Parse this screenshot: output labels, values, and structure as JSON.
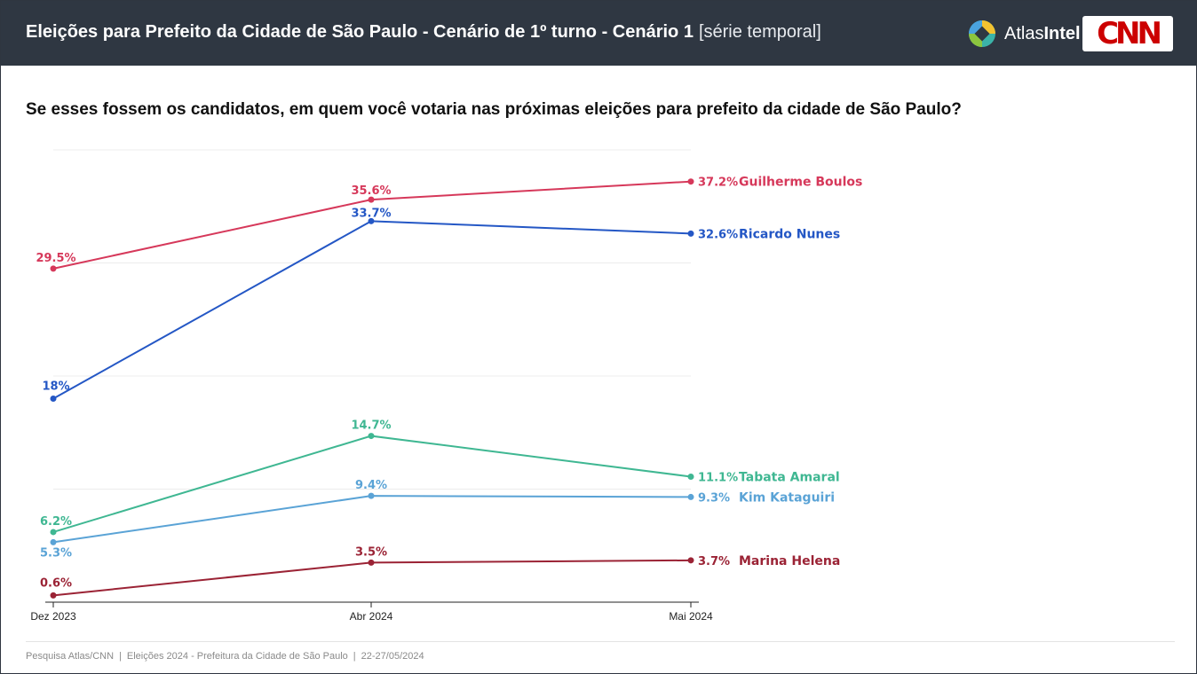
{
  "header": {
    "title": "Eleições para Prefeito da Cidade de São Paulo - Cenário de 1º turno - Cenário 1",
    "subtitle": "[série temporal]",
    "brand_light": "Atlas",
    "brand_bold": "Intel",
    "cnn_logo": "CNN",
    "background_color": "#2f3742"
  },
  "question": "Se esses fossem os candidatos, em quem você votaria nas próximas eleições para prefeito da cidade de São Paulo?",
  "footer": {
    "parts": [
      "Pesquisa Atlas/CNN",
      "Eleições 2024 - Prefeitura da Cidade de São Paulo",
      "22-27/05/2024"
    ]
  },
  "chart_data": {
    "type": "line",
    "title": "",
    "xlabel": "",
    "ylabel": "",
    "categories": [
      "Dez 2023",
      "Abr 2024",
      "Mai 2024"
    ],
    "ylim": [
      0,
      40
    ],
    "grid": true,
    "series": [
      {
        "name": "Guilherme Boulos",
        "values": [
          29.5,
          35.6,
          37.2
        ],
        "labels": [
          "29.5%",
          "35.6%",
          "37.2%"
        ],
        "color": "#d6385a"
      },
      {
        "name": "Ricardo Nunes",
        "values": [
          18,
          33.7,
          32.6
        ],
        "labels": [
          "18%",
          "33.7%",
          "32.6%"
        ],
        "color": "#2457c5"
      },
      {
        "name": "Tabata Amaral",
        "values": [
          6.2,
          14.7,
          11.1
        ],
        "labels": [
          "6.2%",
          "14.7%",
          "11.1%"
        ],
        "color": "#3fb792"
      },
      {
        "name": "Kim Kataguiri",
        "values": [
          5.3,
          9.4,
          9.3
        ],
        "labels": [
          "5.3%",
          "9.4%",
          "9.3%"
        ],
        "color": "#5aa3d6"
      },
      {
        "name": "Marina Helena",
        "values": [
          0.6,
          3.5,
          3.7
        ],
        "labels": [
          "0.6%",
          "3.5%",
          "3.7%"
        ],
        "color": "#9b2335"
      }
    ]
  }
}
